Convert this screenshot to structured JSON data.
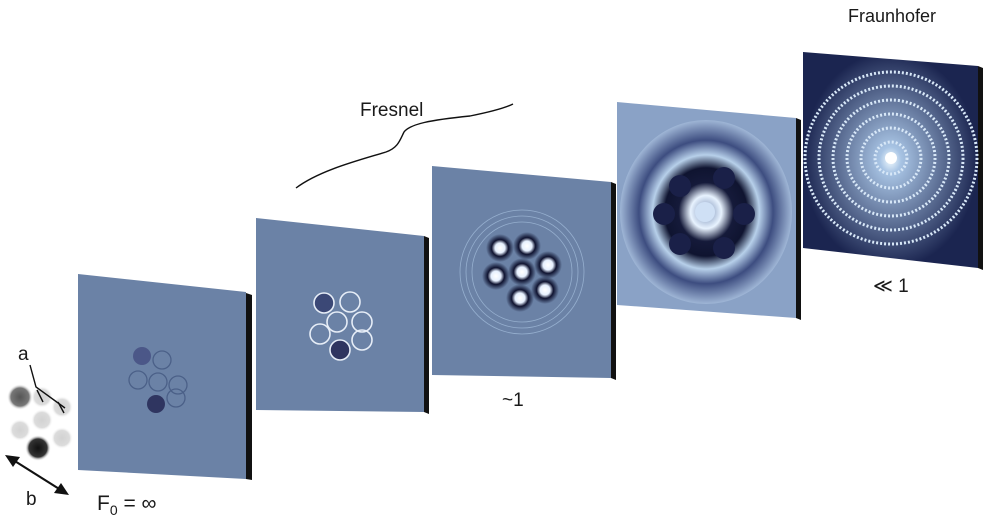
{
  "labels": {
    "fraunhofer": "Fraunhofer",
    "fresnel": "Fresnel",
    "a": "a",
    "b": "b",
    "f0_main": "F",
    "f0_sub": "0",
    "f0_rest": " = ∞",
    "approx_one": "~1",
    "much_less_one": "≪ 1"
  },
  "colors": {
    "plate": "#6b82a6",
    "plate_edge": "#111111",
    "dark_blob": "#2f3560",
    "ring": "#dfe7f2"
  },
  "panels": [
    {
      "name": "panel-1-geometric",
      "pattern": "hexagonal aperture outlines"
    },
    {
      "name": "panel-2-near-field",
      "pattern": "hexagonal aperture outlines with edge fringes"
    },
    {
      "name": "panel-3-fresnel",
      "pattern": "hexagonal array of bright spots with fringes"
    },
    {
      "name": "panel-4-transition",
      "pattern": "ring-like blurred pattern"
    },
    {
      "name": "panel-5-fraunhofer",
      "pattern": "concentric speckled rings"
    }
  ]
}
